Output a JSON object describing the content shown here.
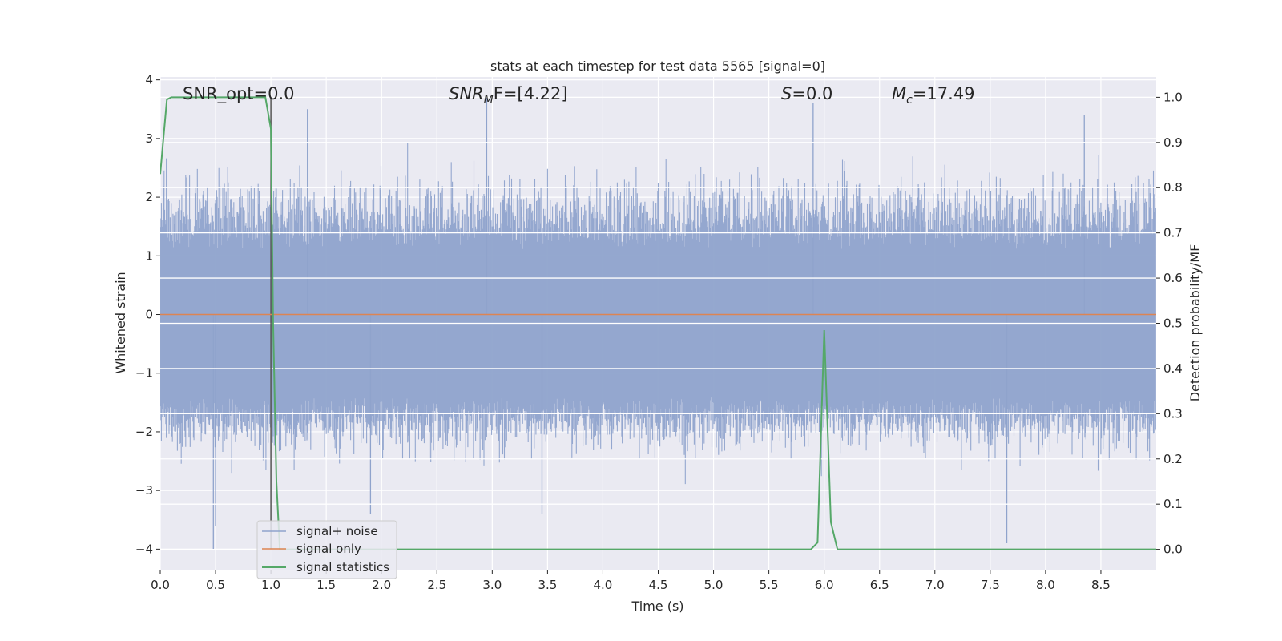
{
  "chart_data": {
    "type": "line",
    "title": "stats at each timestep for test data 5565 [signal=0]",
    "xlabel": "Time (s)",
    "ylabel": "Whitened strain",
    "y2label": "Detection probability/MF",
    "xlim": [
      0.0,
      9.0
    ],
    "ylim": [
      -4.35,
      4.05
    ],
    "y2lim": [
      -0.045,
      1.045
    ],
    "x_ticks": [
      0.0,
      0.5,
      1.0,
      1.5,
      2.0,
      2.5,
      3.0,
      3.5,
      4.0,
      4.5,
      5.0,
      5.5,
      6.0,
      6.5,
      7.0,
      7.5,
      8.0,
      8.5
    ],
    "x_tick_labels": [
      "0.0",
      "0.5",
      "1.0",
      "1.5",
      "2.0",
      "2.5",
      "3.0",
      "3.5",
      "4.0",
      "4.5",
      "5.0",
      "5.5",
      "6.0",
      "6.5",
      "7.0",
      "7.5",
      "8.0",
      "8.5"
    ],
    "y_ticks": [
      4,
      3,
      2,
      1,
      0,
      -1,
      -2,
      -3,
      -4
    ],
    "y_tick_labels": [
      "4",
      "3",
      "2",
      "1",
      "0",
      "−1",
      "−2",
      "−3",
      "−4"
    ],
    "y2_ticks": [
      1.0,
      0.9,
      0.8,
      0.7,
      0.6,
      0.5,
      0.4,
      0.3,
      0.2,
      0.1,
      0.0
    ],
    "y2_tick_labels": [
      "1.0",
      "0.9",
      "0.8",
      "0.7",
      "0.6",
      "0.5",
      "0.4",
      "0.3",
      "0.2",
      "0.1",
      "0.0"
    ],
    "grid": true,
    "legend_position": "lower-left",
    "annotations": {
      "snr_opt": "SNR_opt=0.0",
      "snr_mf_sym": "SNR",
      "snr_mf_sub": "M",
      "snr_mf_rest": "F=[4.22]",
      "s_sym": "S",
      "s_rest": "=0.0",
      "mc_sym": "M",
      "mc_sub": "c",
      "mc_rest": "=17.49"
    },
    "vline_x": 1.0,
    "series": [
      {
        "name": "signal+ noise",
        "axis": "left",
        "color": "#8fa3cc",
        "kind": "noise",
        "typical_envelope": [
          -1.7,
          1.4
        ],
        "notable_spikes": [
          {
            "x": 0.48,
            "y": -4.0
          },
          {
            "x": 0.5,
            "y": -3.6
          },
          {
            "x": 1.33,
            "y": 3.5
          },
          {
            "x": 1.9,
            "y": -3.4
          },
          {
            "x": 2.95,
            "y": 3.7
          },
          {
            "x": 3.45,
            "y": -3.4
          },
          {
            "x": 5.9,
            "y": 3.6
          },
          {
            "x": 7.65,
            "y": -3.9
          },
          {
            "x": 8.35,
            "y": 3.4
          }
        ]
      },
      {
        "name": "signal only",
        "axis": "left",
        "color": "#dd8452",
        "x": [
          0.0,
          9.0
        ],
        "y": [
          0.0,
          0.0
        ]
      },
      {
        "name": "signal statistics",
        "axis": "right",
        "color": "#55a868",
        "x": [
          0.0,
          0.06,
          0.1,
          0.15,
          0.2,
          0.3,
          0.4,
          0.5,
          0.6,
          0.7,
          0.8,
          0.9,
          0.95,
          1.0,
          1.02,
          1.05,
          1.08,
          1.12,
          1.5,
          2.0,
          3.0,
          4.0,
          5.0,
          5.5,
          5.88,
          5.94,
          6.0,
          6.06,
          6.12,
          6.2,
          7.0,
          8.0,
          9.0
        ],
        "y": [
          0.83,
          0.995,
          1.0,
          1.0,
          1.0,
          1.0,
          1.0,
          1.0,
          1.0,
          1.0,
          1.0,
          1.0,
          1.0,
          0.93,
          0.5,
          0.15,
          0.0,
          0.0,
          0.0,
          0.0,
          0.0,
          0.0,
          0.0,
          0.0,
          0.0,
          0.015,
          0.485,
          0.06,
          0.0,
          0.0,
          0.0,
          0.0,
          0.0
        ]
      }
    ]
  }
}
